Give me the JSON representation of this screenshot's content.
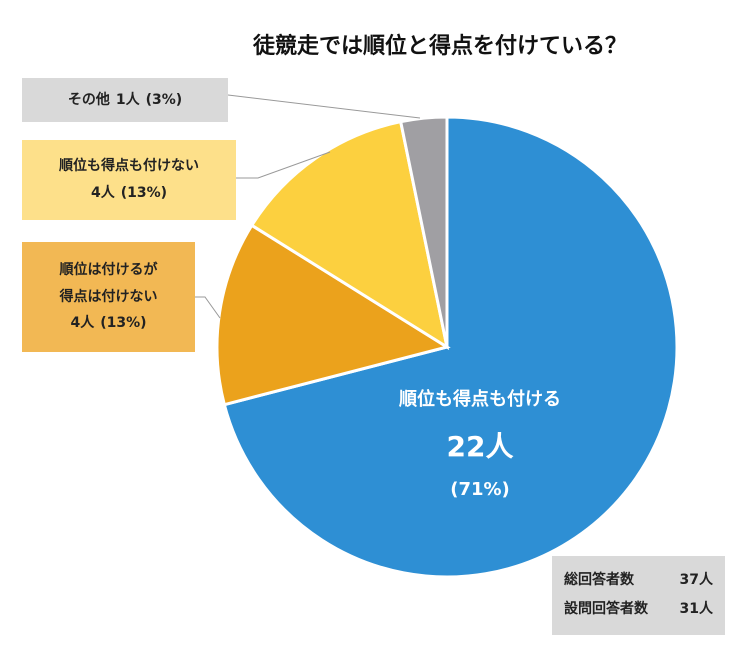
{
  "chart_data": {
    "type": "pie",
    "title": "徒競走では順位と得点を付けている？",
    "categories": [
      "順位も得点も付ける",
      "順位は付けるが\n得点は付けない",
      "順位も得点も付けない",
      "その他"
    ],
    "values": [
      22,
      4,
      4,
      1
    ],
    "value_labels": [
      "22人",
      "4人",
      "4人",
      "1人"
    ],
    "percentages": [
      71,
      13,
      13,
      3
    ],
    "percentage_labels": [
      "(71%)",
      "(13%)",
      "(13%)",
      "(3%)"
    ],
    "colors": [
      "#2e8fd4",
      "#eba21c",
      "#fcd03f",
      "#a09fa3"
    ]
  },
  "summary": [
    {
      "label": "総回答者数",
      "count": "37人"
    },
    {
      "label": "設問回答者数",
      "count": "31人"
    }
  ]
}
